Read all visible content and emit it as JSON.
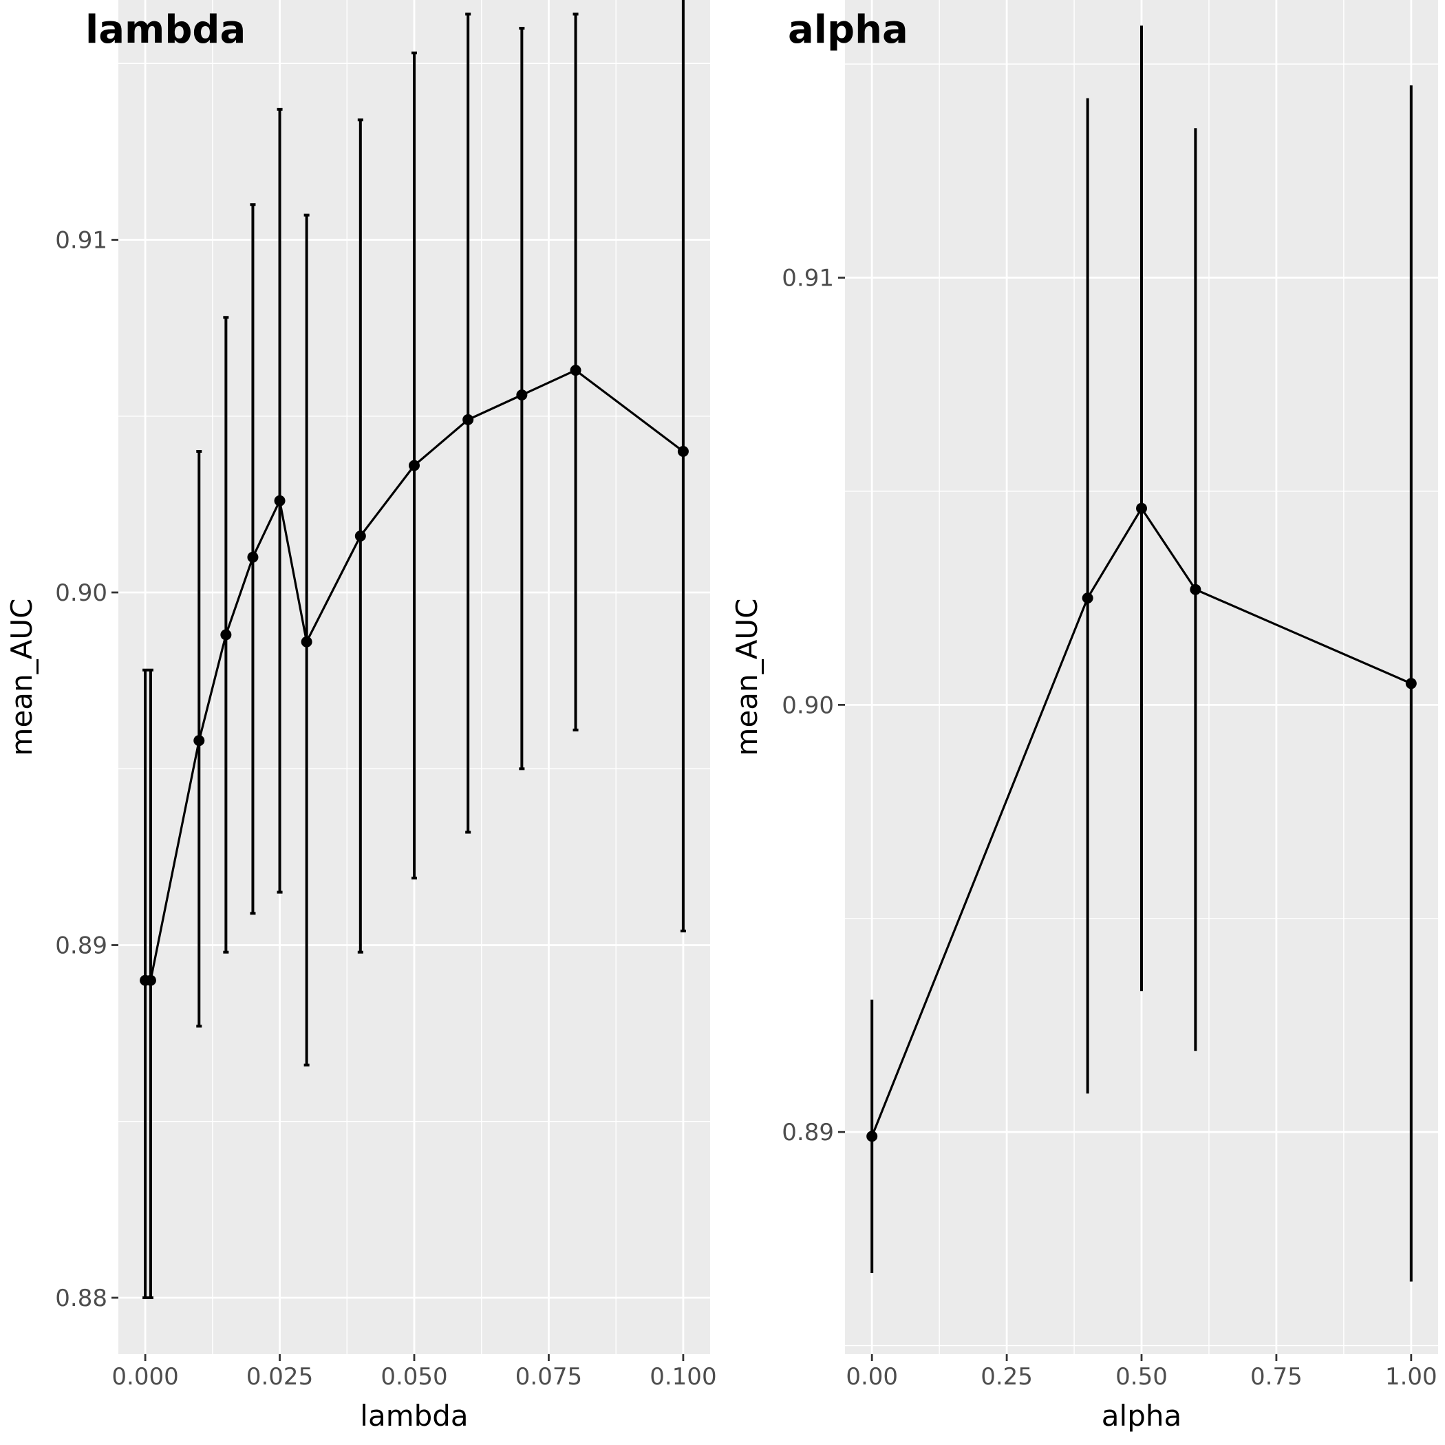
{
  "chart_data": [
    {
      "type": "line",
      "title": "lambda",
      "xlabel": "lambda",
      "ylabel": "mean_AUC",
      "xlim": [
        -0.005,
        0.105
      ],
      "ylim": [
        0.8784,
        0.9168
      ],
      "x_ticks": [
        0.0,
        0.025,
        0.05,
        0.075,
        0.1
      ],
      "x_tick_labels": [
        "0.000",
        "0.025",
        "0.050",
        "0.075",
        "0.100"
      ],
      "y_ticks": [
        0.88,
        0.89,
        0.9,
        0.91
      ],
      "y_tick_labels": [
        "0.88",
        "0.89",
        "0.90",
        "0.91"
      ],
      "grid": true,
      "error_bar_caps": true,
      "points": [
        {
          "x": 0.0,
          "y": 0.889,
          "ymin": 0.88,
          "ymax": 0.8978
        },
        {
          "x": 0.001,
          "y": 0.889,
          "ymin": 0.88,
          "ymax": 0.8978
        },
        {
          "x": 0.01,
          "y": 0.8958,
          "ymin": 0.8877,
          "ymax": 0.904
        },
        {
          "x": 0.015,
          "y": 0.8988,
          "ymin": 0.8898,
          "ymax": 0.9078
        },
        {
          "x": 0.02,
          "y": 0.901,
          "ymin": 0.8909,
          "ymax": 0.911
        },
        {
          "x": 0.025,
          "y": 0.9026,
          "ymin": 0.8915,
          "ymax": 0.9137
        },
        {
          "x": 0.03,
          "y": 0.8986,
          "ymin": 0.8866,
          "ymax": 0.9107
        },
        {
          "x": 0.04,
          "y": 0.9016,
          "ymin": 0.8898,
          "ymax": 0.9134
        },
        {
          "x": 0.05,
          "y": 0.9036,
          "ymin": 0.8919,
          "ymax": 0.9153
        },
        {
          "x": 0.06,
          "y": 0.9049,
          "ymin": 0.8932,
          "ymax": 0.9164
        },
        {
          "x": 0.07,
          "y": 0.9056,
          "ymin": 0.895,
          "ymax": 0.916
        },
        {
          "x": 0.08,
          "y": 0.9063,
          "ymin": 0.8961,
          "ymax": 0.9164
        },
        {
          "x": 0.1,
          "y": 0.904,
          "ymin": 0.8904,
          "ymax": 0.9173
        }
      ]
    },
    {
      "type": "line",
      "title": "alpha",
      "xlabel": "alpha",
      "ylabel": "mean_AUC",
      "xlim": [
        -0.05,
        1.05
      ],
      "ylim": [
        0.8848,
        0.9165
      ],
      "x_ticks": [
        0.0,
        0.25,
        0.5,
        0.75,
        1.0
      ],
      "x_tick_labels": [
        "0.00",
        "0.25",
        "0.50",
        "0.75",
        "1.00"
      ],
      "y_ticks": [
        0.89,
        0.9,
        0.91
      ],
      "y_tick_labels": [
        "0.89",
        "0.90",
        "0.91"
      ],
      "grid": true,
      "error_bar_caps": false,
      "points": [
        {
          "x": 0.0,
          "y": 0.8899,
          "ymin": 0.8867,
          "ymax": 0.8931
        },
        {
          "x": 0.4,
          "y": 0.9025,
          "ymin": 0.8909,
          "ymax": 0.9142
        },
        {
          "x": 0.5,
          "y": 0.9046,
          "ymin": 0.8933,
          "ymax": 0.9159
        },
        {
          "x": 0.6,
          "y": 0.9027,
          "ymin": 0.8919,
          "ymax": 0.9135
        },
        {
          "x": 1.0,
          "y": 0.9005,
          "ymin": 0.8865,
          "ymax": 0.9145
        }
      ]
    }
  ]
}
